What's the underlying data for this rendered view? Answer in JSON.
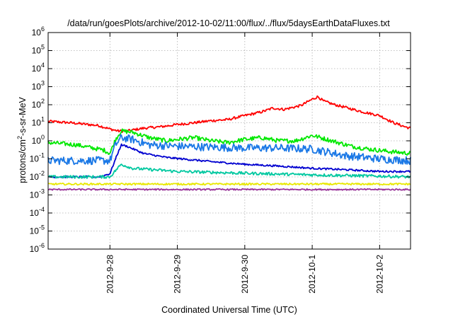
{
  "chart_data": {
    "type": "line",
    "title": "/data/run/goesPlots/archive/2012-10-02/11:00/flux/../flux/5daysEarthDataFluxes.txt",
    "xlabel": "Coordinated Universal Time (UTC)",
    "ylabel_main": "protons/cm",
    "ylabel_sup": "2",
    "ylabel_tail": "-s-sr-MeV",
    "y_scale": "log",
    "ylim": [
      1e-06,
      1000000.0
    ],
    "y_ticks": [
      {
        "value": 1e-06,
        "base": "10",
        "exp": "-6"
      },
      {
        "value": 1e-05,
        "base": "10",
        "exp": "-5"
      },
      {
        "value": 0.0001,
        "base": "10",
        "exp": "-4"
      },
      {
        "value": 0.001,
        "base": "10",
        "exp": "-3"
      },
      {
        "value": 0.01,
        "base": "10",
        "exp": "-2"
      },
      {
        "value": 0.1,
        "base": "10",
        "exp": "-1"
      },
      {
        "value": 1,
        "base": "10",
        "exp": "0"
      },
      {
        "value": 10,
        "base": "10",
        "exp": "1"
      },
      {
        "value": 100,
        "base": "10",
        "exp": "2"
      },
      {
        "value": 1000,
        "base": "10",
        "exp": "3"
      },
      {
        "value": 10000,
        "base": "10",
        "exp": "4"
      },
      {
        "value": 100000,
        "base": "10",
        "exp": "5"
      },
      {
        "value": 1000000,
        "base": "10",
        "exp": "6"
      }
    ],
    "xlim": [
      "2012-09-27T02:00",
      "2012-10-02T11:00"
    ],
    "x_ticks": [
      {
        "date": "2012-09-28T00:00",
        "label": "2012-9-28"
      },
      {
        "date": "2012-09-29T00:00",
        "label": "2012-9-29"
      },
      {
        "date": "2012-09-30T00:00",
        "label": "2012-9-30"
      },
      {
        "date": "2012-10-01T00:00",
        "label": "2012-10-1"
      },
      {
        "date": "2012-10-02T00:00",
        "label": "2012-10-2"
      }
    ],
    "grid": true,
    "series": [
      {
        "color": "#ff0000",
        "noise": 0.07,
        "points": [
          [
            "2012-09-27T02:00",
            12
          ],
          [
            "2012-09-27T10:00",
            10
          ],
          [
            "2012-09-27T20:00",
            7
          ],
          [
            "2012-09-28T00:00",
            4.5
          ],
          [
            "2012-09-28T03:00",
            3.5
          ],
          [
            "2012-09-28T06:00",
            3.5
          ],
          [
            "2012-09-28T12:00",
            5
          ],
          [
            "2012-09-28T18:00",
            6
          ],
          [
            "2012-09-29T00:00",
            8
          ],
          [
            "2012-09-29T06:00",
            10
          ],
          [
            "2012-09-29T12:00",
            13
          ],
          [
            "2012-09-29T18:00",
            15
          ],
          [
            "2012-09-30T00:00",
            25
          ],
          [
            "2012-09-30T06:00",
            40
          ],
          [
            "2012-09-30T10:00",
            65
          ],
          [
            "2012-09-30T14:00",
            55
          ],
          [
            "2012-09-30T20:00",
            90
          ],
          [
            "2012-10-01T00:00",
            200
          ],
          [
            "2012-10-01T02:00",
            280
          ],
          [
            "2012-10-01T04:00",
            160
          ],
          [
            "2012-10-01T08:00",
            100
          ],
          [
            "2012-10-01T12:00",
            70
          ],
          [
            "2012-10-01T18:00",
            40
          ],
          [
            "2012-10-02T00:00",
            25
          ],
          [
            "2012-10-02T05:00",
            10
          ],
          [
            "2012-10-02T09:00",
            6
          ],
          [
            "2012-10-02T11:00",
            5
          ]
        ]
      },
      {
        "color": "#00e800",
        "noise": 0.12,
        "points": [
          [
            "2012-09-27T02:00",
            0.8
          ],
          [
            "2012-09-27T12:00",
            0.6
          ],
          [
            "2012-09-27T22:00",
            0.3
          ],
          [
            "2012-09-28T00:00",
            0.2
          ],
          [
            "2012-09-28T02:00",
            1.2
          ],
          [
            "2012-09-28T04:00",
            3.5
          ],
          [
            "2012-09-28T08:00",
            3
          ],
          [
            "2012-09-28T14:00",
            1.5
          ],
          [
            "2012-09-28T20:00",
            1.0
          ],
          [
            "2012-09-29T00:00",
            1.2
          ],
          [
            "2012-09-29T06:00",
            1.5
          ],
          [
            "2012-09-29T12:00",
            1.0
          ],
          [
            "2012-09-29T18:00",
            0.8
          ],
          [
            "2012-09-30T00:00",
            1.2
          ],
          [
            "2012-09-30T06:00",
            1.5
          ],
          [
            "2012-09-30T12:00",
            1.0
          ],
          [
            "2012-09-30T18:00",
            1.0
          ],
          [
            "2012-10-01T00:00",
            2.0
          ],
          [
            "2012-10-01T03:00",
            1.5
          ],
          [
            "2012-10-01T08:00",
            0.9
          ],
          [
            "2012-10-01T14:00",
            0.5
          ],
          [
            "2012-10-01T20:00",
            0.35
          ],
          [
            "2012-10-02T04:00",
            0.25
          ],
          [
            "2012-10-02T11:00",
            0.2
          ]
        ]
      },
      {
        "color": "#1a78e6",
        "noise": 0.22,
        "points": [
          [
            "2012-09-27T02:00",
            0.08
          ],
          [
            "2012-09-27T18:00",
            0.08
          ],
          [
            "2012-09-28T00:00",
            0.08
          ],
          [
            "2012-09-28T02:00",
            0.6
          ],
          [
            "2012-09-28T04:00",
            1.5
          ],
          [
            "2012-09-28T08:00",
            1.2
          ],
          [
            "2012-09-28T14:00",
            0.6
          ],
          [
            "2012-09-29T00:00",
            0.5
          ],
          [
            "2012-09-29T12:00",
            0.45
          ],
          [
            "2012-09-30T00:00",
            0.4
          ],
          [
            "2012-09-30T12:00",
            0.4
          ],
          [
            "2012-10-01T00:00",
            0.35
          ],
          [
            "2012-10-01T12:00",
            0.15
          ],
          [
            "2012-10-02T00:00",
            0.1
          ],
          [
            "2012-10-02T11:00",
            0.08
          ]
        ]
      },
      {
        "color": "#0000d0",
        "noise": 0.05,
        "points": [
          [
            "2012-09-27T02:00",
            0.01
          ],
          [
            "2012-09-27T20:00",
            0.01
          ],
          [
            "2012-09-28T00:00",
            0.015
          ],
          [
            "2012-09-28T02:00",
            0.1
          ],
          [
            "2012-09-28T04:00",
            0.6
          ],
          [
            "2012-09-28T06:00",
            0.5
          ],
          [
            "2012-09-28T12:00",
            0.2
          ],
          [
            "2012-09-28T20:00",
            0.12
          ],
          [
            "2012-09-29T12:00",
            0.07
          ],
          [
            "2012-09-30T00:00",
            0.05
          ],
          [
            "2012-09-30T12:00",
            0.04
          ],
          [
            "2012-10-01T00:00",
            0.03
          ],
          [
            "2012-10-01T12:00",
            0.025
          ],
          [
            "2012-10-02T00:00",
            0.02
          ],
          [
            "2012-10-02T11:00",
            0.02
          ]
        ]
      },
      {
        "color": "#00c8a0",
        "noise": 0.08,
        "points": [
          [
            "2012-09-27T02:00",
            0.01
          ],
          [
            "2012-09-27T20:00",
            0.01
          ],
          [
            "2012-09-28T00:00",
            0.01
          ],
          [
            "2012-09-28T04:00",
            0.05
          ],
          [
            "2012-09-28T08:00",
            0.03
          ],
          [
            "2012-09-29T00:00",
            0.02
          ],
          [
            "2012-09-30T00:00",
            0.016
          ],
          [
            "2012-10-01T00:00",
            0.013
          ],
          [
            "2012-10-02T00:00",
            0.011
          ],
          [
            "2012-10-02T11:00",
            0.01
          ]
        ]
      },
      {
        "color": "#e8e800",
        "noise": 0.05,
        "points": [
          [
            "2012-09-27T02:00",
            0.004
          ],
          [
            "2012-10-02T11:00",
            0.004
          ]
        ]
      },
      {
        "color": "#993399",
        "noise": 0.04,
        "points": [
          [
            "2012-09-27T02:00",
            0.002
          ],
          [
            "2012-10-02T11:00",
            0.002
          ]
        ]
      }
    ]
  }
}
